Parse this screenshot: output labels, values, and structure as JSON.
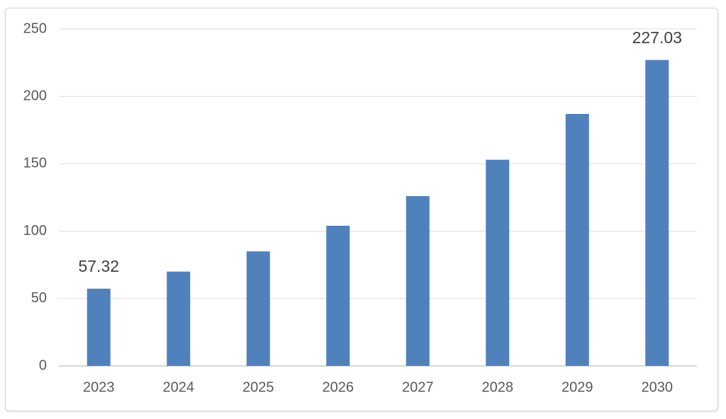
{
  "chart_data": {
    "type": "bar",
    "categories": [
      "2023",
      "2024",
      "2025",
      "2026",
      "2027",
      "2028",
      "2029",
      "2030"
    ],
    "values": [
      57.32,
      70,
      85,
      104,
      126,
      153,
      187,
      227.03
    ],
    "value_labels": [
      "57.32",
      null,
      null,
      null,
      null,
      null,
      null,
      "227.03"
    ],
    "color": "#4f81bd",
    "ylim": [
      0,
      250
    ],
    "yticks": [
      0,
      50,
      100,
      150,
      200,
      250
    ],
    "grid": true
  }
}
